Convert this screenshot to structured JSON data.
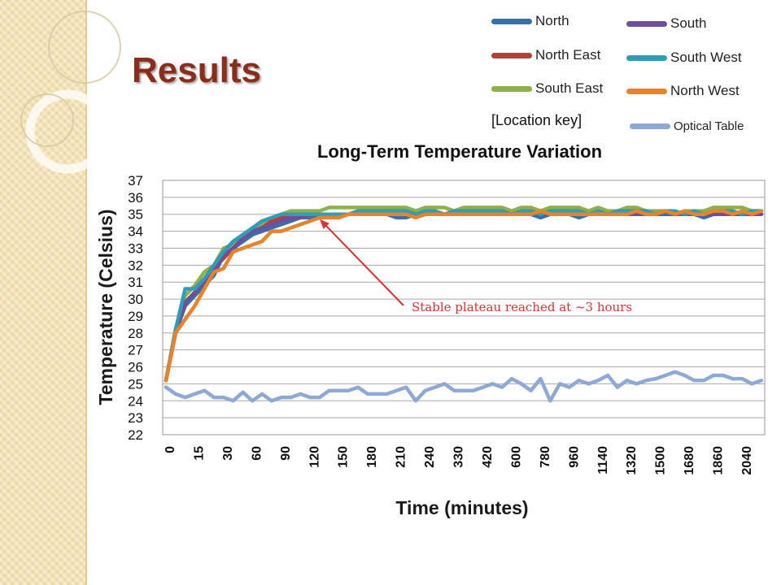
{
  "slide": {
    "title": "Results"
  },
  "legend": {
    "key_label": "[Location key]",
    "items": [
      {
        "name": "North",
        "color": "#3a6ea8"
      },
      {
        "name": "South",
        "color": "#6f4e9c"
      },
      {
        "name": "North East",
        "color": "#b5403a"
      },
      {
        "name": "South West",
        "color": "#2f9db5"
      },
      {
        "name": "South East",
        "color": "#8fb04a"
      },
      {
        "name": "North West",
        "color": "#e8822b"
      },
      {
        "name": "Optical Table",
        "color": "#8fa9d6"
      }
    ]
  },
  "chart_data": {
    "type": "line",
    "title": "Long-Term Temperature Variation",
    "xlabel": "Time (minutes)",
    "ylabel": "Temperature (Celsius)",
    "ylim": [
      22,
      37
    ],
    "yticks": [
      22,
      23,
      24,
      25,
      26,
      27,
      28,
      29,
      30,
      31,
      32,
      33,
      34,
      35,
      36,
      37
    ],
    "xtick_labels": [
      "0",
      "15",
      "30",
      "60",
      "90",
      "120",
      "150",
      "180",
      "210",
      "240",
      "330",
      "420",
      "600",
      "780",
      "960",
      "1140",
      "1320",
      "1500",
      "1680",
      "1860",
      "2040"
    ],
    "grid": true,
    "series": [
      {
        "name": "Optical Table",
        "color": "#8fa9d6",
        "values": [
          24.8,
          24.4,
          24.2,
          24.4,
          24.6,
          24.2,
          24.2,
          24.0,
          24.5,
          24.0,
          24.4,
          24.0,
          24.2,
          24.2,
          24.4,
          24.2,
          24.2,
          24.6,
          24.6,
          24.6,
          24.8,
          24.4,
          24.4,
          24.4,
          24.6,
          24.8,
          24.0,
          24.6,
          24.8,
          25.0,
          24.6,
          24.6,
          24.6,
          24.8,
          25.0,
          24.8,
          25.3,
          25.0,
          24.6,
          25.3,
          24.0,
          25.0,
          24.8,
          25.2,
          25.0,
          25.2,
          25.5,
          24.8,
          25.2,
          25.0,
          25.2,
          25.3,
          25.5,
          25.7,
          25.5,
          25.2,
          25.2,
          25.5,
          25.5,
          25.3,
          25.3,
          25.0,
          25.2
        ]
      },
      {
        "name": "South East",
        "color": "#8fb04a",
        "values": [
          25.2,
          28.2,
          30.2,
          30.8,
          31.6,
          32.0,
          33.0,
          33.2,
          33.8,
          34.0,
          34.4,
          34.6,
          35.0,
          35.2,
          35.2,
          35.2,
          35.2,
          35.4,
          35.4,
          35.4,
          35.4,
          35.4,
          35.4,
          35.4,
          35.4,
          35.4,
          35.2,
          35.4,
          35.4,
          35.4,
          35.2,
          35.4,
          35.4,
          35.4,
          35.4,
          35.4,
          35.2,
          35.4,
          35.4,
          35.2,
          35.4,
          35.4,
          35.4,
          35.4,
          35.2,
          35.4,
          35.2,
          35.2,
          35.4,
          35.4,
          35.2,
          35.2,
          35.2,
          35.0,
          35.2,
          35.2,
          35.2,
          35.4,
          35.4,
          35.4,
          35.4,
          35.2,
          35.2
        ]
      },
      {
        "name": "North East",
        "color": "#b5403a",
        "values": [
          25.2,
          28.0,
          29.8,
          30.4,
          31.0,
          31.8,
          32.4,
          33.0,
          33.4,
          33.8,
          34.2,
          34.6,
          34.8,
          34.8,
          34.8,
          35.0,
          35.0,
          35.0,
          35.0,
          35.0,
          35.0,
          35.0,
          35.0,
          35.0,
          35.0,
          35.0,
          35.0,
          35.0,
          35.0,
          35.0,
          35.0,
          35.0,
          35.0,
          35.0,
          35.0,
          35.0,
          35.0,
          35.0,
          35.0,
          35.0,
          35.0,
          35.0,
          35.0,
          35.0,
          35.0,
          35.0,
          35.0,
          35.0,
          35.0,
          35.0,
          35.0,
          35.0,
          35.0,
          35.0,
          35.0,
          35.0,
          35.0,
          35.0,
          35.0,
          35.0,
          35.0,
          35.0,
          35.0
        ]
      },
      {
        "name": "North",
        "color": "#3a6ea8",
        "values": [
          25.2,
          28.0,
          29.6,
          30.2,
          30.8,
          31.4,
          32.6,
          33.0,
          33.4,
          33.8,
          34.0,
          34.2,
          34.4,
          34.6,
          34.8,
          34.8,
          35.0,
          35.0,
          35.0,
          35.0,
          35.0,
          35.0,
          35.0,
          35.0,
          34.8,
          34.8,
          35.0,
          35.0,
          35.0,
          35.0,
          35.0,
          35.0,
          35.0,
          35.0,
          35.0,
          35.0,
          35.0,
          35.0,
          35.0,
          34.8,
          35.0,
          35.0,
          35.0,
          34.8,
          35.0,
          35.0,
          35.0,
          35.0,
          35.0,
          35.0,
          35.0,
          35.0,
          35.0,
          35.0,
          35.0,
          35.0,
          34.8,
          35.0,
          35.0,
          35.0,
          35.0,
          35.0,
          35.0
        ]
      },
      {
        "name": "South",
        "color": "#6f4e9c",
        "values": [
          25.2,
          28.0,
          29.8,
          30.4,
          31.0,
          31.6,
          32.6,
          33.0,
          33.6,
          34.0,
          34.2,
          34.4,
          34.6,
          34.8,
          34.8,
          35.0,
          35.0,
          35.0,
          35.0,
          35.0,
          35.0,
          35.0,
          35.0,
          35.0,
          35.0,
          35.0,
          35.0,
          35.0,
          35.0,
          35.0,
          35.0,
          35.0,
          35.0,
          35.0,
          35.0,
          35.0,
          35.0,
          35.0,
          35.2,
          35.0,
          35.0,
          35.2,
          35.0,
          35.0,
          35.0,
          35.0,
          35.0,
          35.0,
          35.0,
          35.0,
          35.0,
          35.0,
          35.2,
          35.0,
          35.0,
          35.0,
          35.0,
          35.0,
          35.0,
          35.0,
          35.0,
          35.0,
          35.0
        ]
      },
      {
        "name": "South West",
        "color": "#2f9db5",
        "values": [
          25.2,
          28.2,
          30.6,
          30.6,
          31.2,
          32.0,
          32.8,
          33.4,
          33.8,
          34.2,
          34.6,
          34.8,
          35.0,
          35.0,
          35.0,
          35.0,
          35.0,
          35.0,
          35.0,
          35.0,
          35.2,
          35.2,
          35.2,
          35.2,
          35.2,
          35.2,
          35.0,
          35.2,
          35.2,
          35.0,
          35.2,
          35.2,
          35.2,
          35.2,
          35.2,
          35.2,
          35.0,
          35.2,
          35.2,
          35.0,
          35.2,
          35.2,
          35.2,
          35.2,
          35.0,
          35.2,
          35.0,
          35.2,
          35.2,
          35.2,
          35.2,
          35.0,
          35.2,
          35.2,
          35.0,
          35.2,
          35.0,
          35.2,
          35.2,
          35.2,
          35.0,
          35.2,
          35.2
        ]
      },
      {
        "name": "North West",
        "color": "#e8822b",
        "values": [
          25.2,
          28.0,
          28.8,
          29.6,
          30.6,
          31.6,
          31.8,
          32.8,
          33.0,
          33.2,
          33.4,
          34.0,
          34.0,
          34.2,
          34.4,
          34.6,
          34.8,
          34.8,
          34.8,
          35.0,
          35.0,
          35.0,
          35.0,
          35.0,
          35.0,
          35.0,
          34.8,
          35.0,
          35.0,
          35.0,
          35.0,
          35.0,
          35.0,
          35.0,
          35.0,
          35.0,
          35.0,
          35.0,
          35.0,
          35.2,
          35.0,
          35.0,
          35.0,
          35.0,
          35.0,
          35.0,
          35.0,
          35.0,
          35.0,
          35.2,
          35.0,
          35.0,
          35.2,
          35.0,
          35.2,
          35.0,
          35.0,
          35.2,
          35.2,
          35.0,
          35.2,
          35.0,
          35.2
        ]
      }
    ],
    "annotations": [
      {
        "text": "Stable plateau reached at ~3 hours",
        "target_index": 16,
        "target_value": 35.0,
        "color": "#e03030"
      }
    ]
  }
}
